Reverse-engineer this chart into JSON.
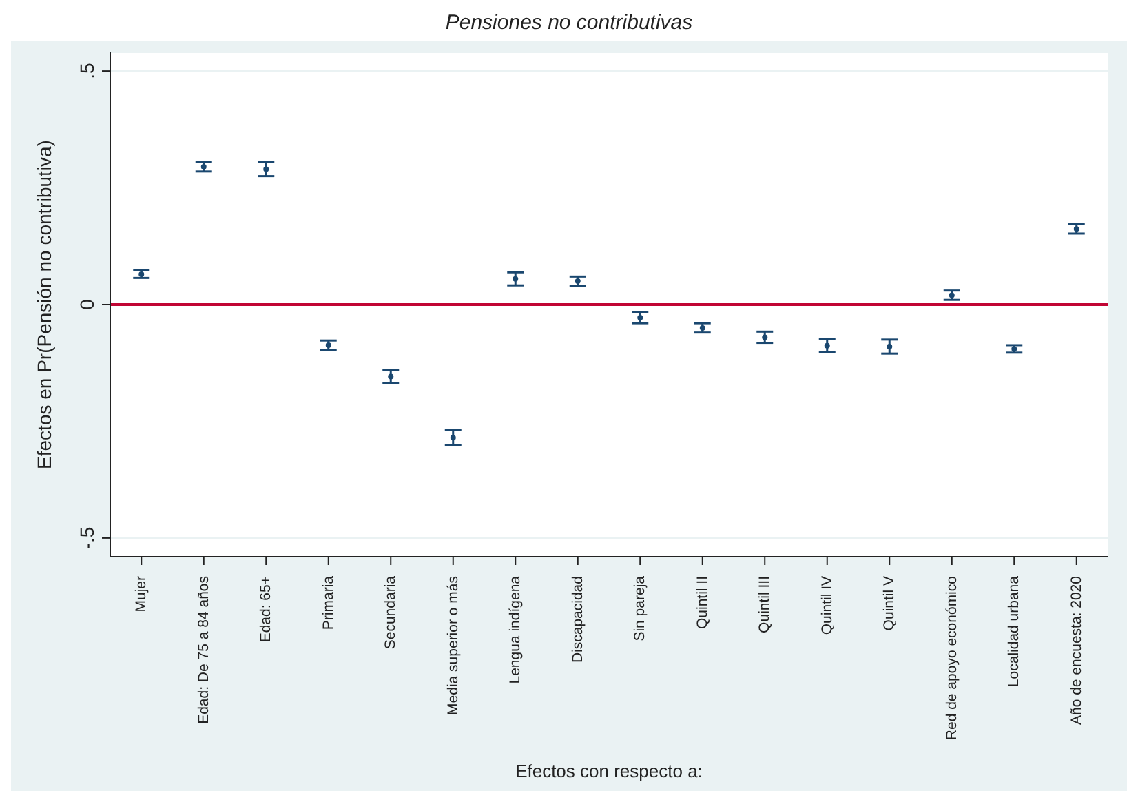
{
  "chart_data": {
    "type": "scatter",
    "title": "Pensiones no contributivas",
    "xlabel": "Efectos con respecto a:",
    "ylabel": "Efectos en Pr(Pensión no contributiva)",
    "categories": [
      "Mujer",
      "Edad: De 75 a 84 años",
      "Edad: 65+",
      "Primaria",
      "Secundaria",
      "Media superior o más",
      "Lengua indígena",
      "Discapacidad",
      "Sin pareja",
      "Quintil II",
      "Quintil III",
      "Quintil IV",
      "Quintil V",
      "Red de apoyo económico",
      "Localidad urbana",
      "Año de encuesta: 2020"
    ],
    "series": [
      {
        "color": "#1a476f",
        "values": [
          0.065,
          0.295,
          0.29,
          -0.087,
          -0.154,
          -0.285,
          0.055,
          0.05,
          -0.028,
          -0.05,
          -0.07,
          -0.088,
          -0.09,
          0.02,
          -0.095,
          0.162
        ],
        "errors": [
          0.008,
          0.01,
          0.015,
          0.01,
          0.014,
          0.016,
          0.014,
          0.01,
          0.012,
          0.01,
          0.012,
          0.014,
          0.015,
          0.01,
          0.008,
          0.01
        ]
      }
    ],
    "ylim": [
      -0.54,
      0.54
    ],
    "yticks": [
      {
        "value": -0.5,
        "label": "-.5"
      },
      0,
      {
        "value": 0.5,
        "label": ".5"
      }
    ],
    "ref_lines": [
      {
        "axis": "y",
        "value": 0,
        "color": "#c10534"
      }
    ],
    "grid": "y",
    "marker": "circle",
    "legend": false
  }
}
